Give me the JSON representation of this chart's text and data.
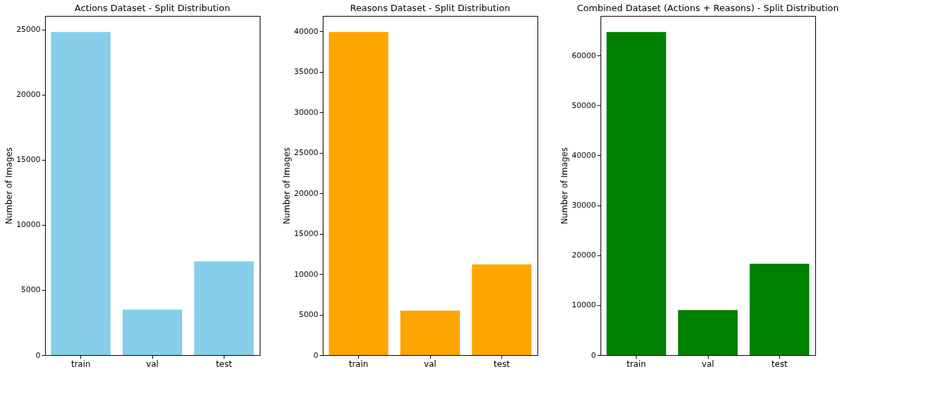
{
  "chart_data": [
    {
      "type": "bar",
      "title": "Actions Dataset - Split Distribution",
      "ylabel": "Number of Images",
      "categories": [
        "train",
        "val",
        "test"
      ],
      "values": [
        24800,
        3500,
        7200
      ],
      "color": "#87ceeb",
      "ylim": [
        0,
        26040
      ],
      "yticks": [
        0,
        5000,
        10000,
        15000,
        20000,
        25000
      ],
      "grid": false
    },
    {
      "type": "bar",
      "title": "Reasons Dataset - Split Distribution",
      "ylabel": "Number of Images",
      "categories": [
        "train",
        "val",
        "test"
      ],
      "values": [
        39900,
        5500,
        11200
      ],
      "color": "#ffa500",
      "ylim": [
        0,
        41895
      ],
      "yticks": [
        0,
        5000,
        10000,
        15000,
        20000,
        25000,
        30000,
        35000,
        40000
      ],
      "grid": false
    },
    {
      "type": "bar",
      "title": "Combined Dataset (Actions + Reasons) - Split Distribution",
      "ylabel": "Number of Images",
      "categories": [
        "train",
        "val",
        "test"
      ],
      "values": [
        64700,
        9000,
        18300
      ],
      "color": "#008000",
      "ylim": [
        0,
        67935
      ],
      "yticks": [
        0,
        10000,
        20000,
        30000,
        40000,
        50000,
        60000
      ],
      "grid": false
    }
  ]
}
